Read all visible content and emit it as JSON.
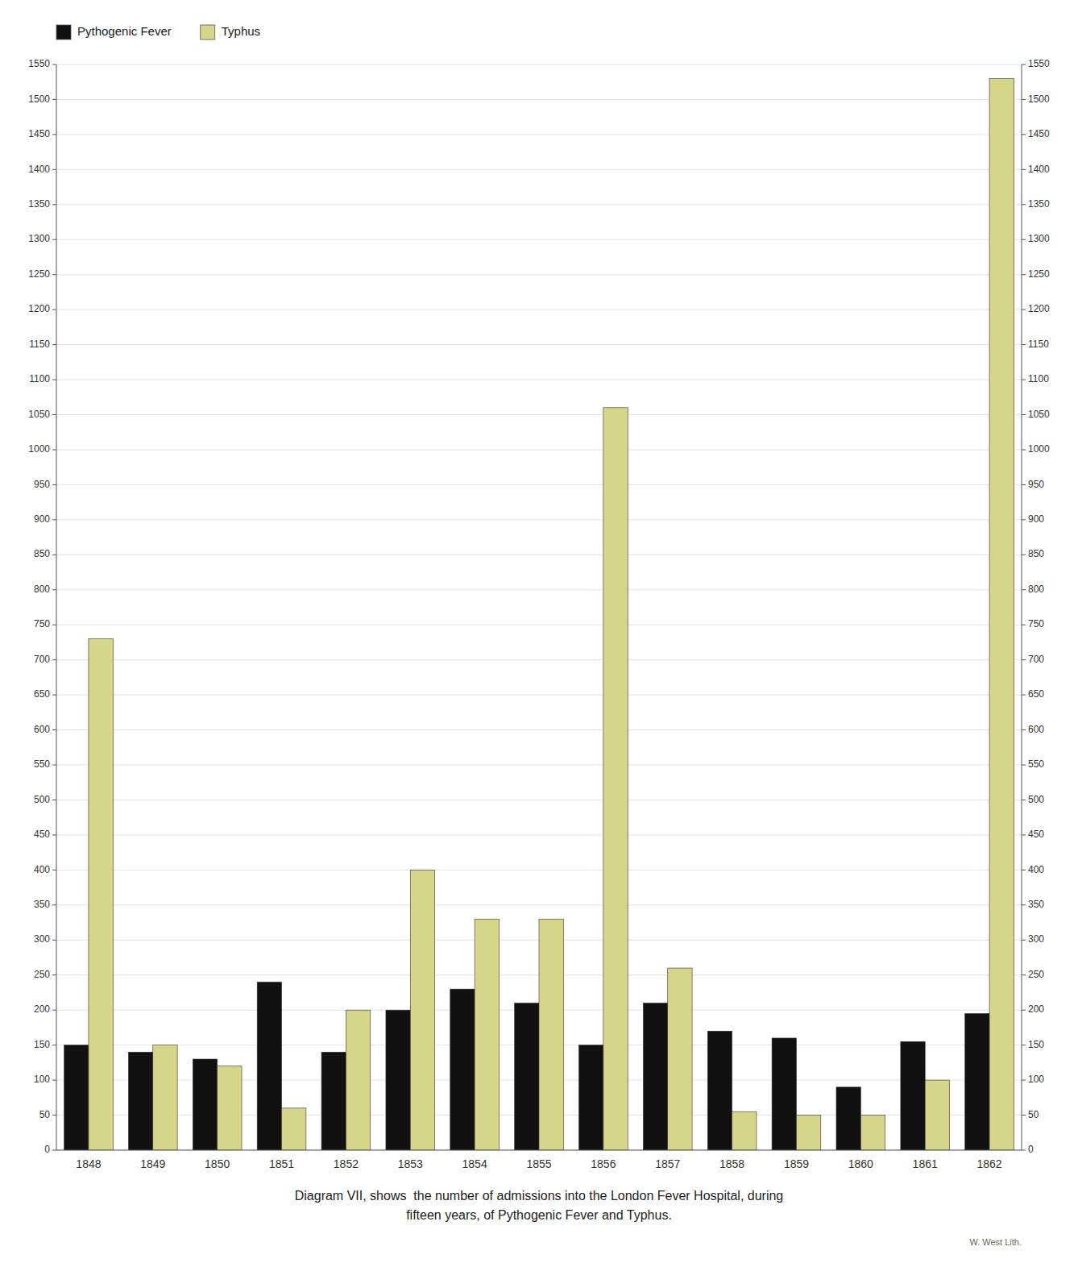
{
  "chart_data": {
    "type": "bar",
    "title": "Diagram VII, shows  the number of admissions into the London Fever Hospital, during",
    "subtitle": "fifteen years, of Pythogenic Fever and Typhus.",
    "annotations": [
      "W. West Lith."
    ],
    "categories": [
      "1848",
      "1849",
      "1850",
      "1851",
      "1852",
      "1853",
      "1854",
      "1855",
      "1856",
      "1857",
      "1858",
      "1859",
      "1860",
      "1861",
      "1862"
    ],
    "series": [
      {
        "name": "Pythogenic Fever",
        "color": "#111111",
        "values": [
          150,
          140,
          130,
          240,
          140,
          200,
          230,
          210,
          150,
          210,
          170,
          160,
          90,
          155,
          195
        ]
      },
      {
        "name": "Typhus",
        "color": "#d6d68a",
        "values": [
          730,
          150,
          120,
          60,
          200,
          400,
          330,
          330,
          1060,
          260,
          55,
          50,
          50,
          100,
          1530
        ]
      }
    ],
    "ylim": [
      0,
      1550
    ],
    "yticks": [
      0,
      50,
      100,
      150,
      200,
      250,
      300,
      350,
      400,
      450,
      500,
      550,
      600,
      650,
      700,
      750,
      800,
      850,
      900,
      950,
      1000,
      1050,
      1100,
      1150,
      1200,
      1250,
      1300,
      1350,
      1400,
      1450,
      1500,
      1550
    ],
    "y2lim": [
      0,
      1550
    ],
    "y2ticks": [
      0,
      50,
      100,
      150,
      200,
      250,
      300,
      350,
      400,
      450,
      500,
      550,
      600,
      650,
      700,
      750,
      800,
      850,
      900,
      950,
      1000,
      1050,
      1100,
      1150,
      1200,
      1250,
      1300,
      1350,
      1400,
      1450,
      1500,
      1550
    ],
    "grid": true,
    "legend": "top-left"
  }
}
